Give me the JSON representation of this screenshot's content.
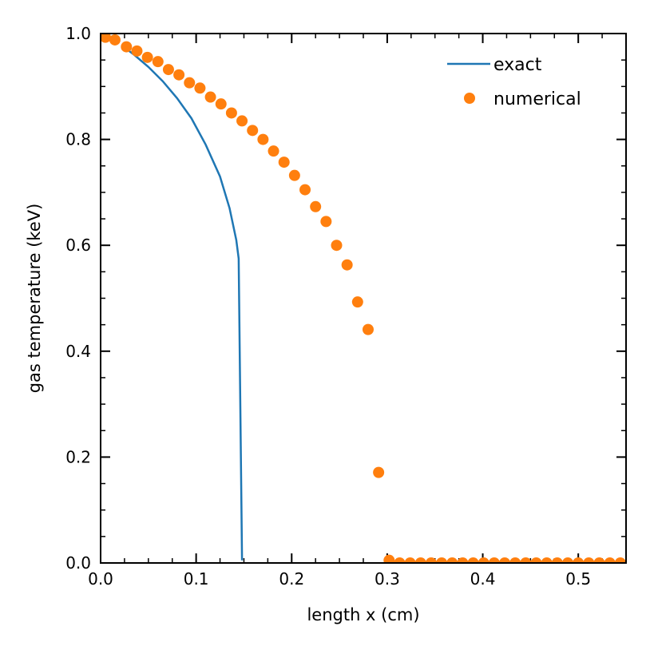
{
  "chart_data": {
    "type": "line",
    "title": "",
    "xlabel": "length x (cm)",
    "ylabel": "gas temperature (keV)",
    "xlim": [
      0.0,
      0.55
    ],
    "ylim": [
      0.0,
      1.0
    ],
    "grid": false,
    "legend_position": "top-right",
    "x_ticks": [
      {
        "value": 0.0,
        "label": "0.0"
      },
      {
        "value": 0.1,
        "label": "0.1"
      },
      {
        "value": 0.2,
        "label": "0.2"
      },
      {
        "value": 0.3,
        "label": "0.3"
      },
      {
        "value": 0.4,
        "label": "0.4"
      },
      {
        "value": 0.5,
        "label": "0.5"
      }
    ],
    "y_ticks": [
      {
        "value": 0.0,
        "label": "0.0"
      },
      {
        "value": 0.2,
        "label": "0.2"
      },
      {
        "value": 0.4,
        "label": "0.4"
      },
      {
        "value": 0.6,
        "label": "0.6"
      },
      {
        "value": 0.8,
        "label": "0.8"
      },
      {
        "value": 1.0,
        "label": "1.0"
      }
    ],
    "x_minor_step": 0.025,
    "y_minor_step": 0.05,
    "series": [
      {
        "name": "exact",
        "kind": "line",
        "color": "#1f77b4",
        "x": [
          0.024,
          0.035,
          0.05,
          0.065,
          0.08,
          0.095,
          0.11,
          0.125,
          0.135,
          0.142,
          0.1445,
          0.148
        ],
        "y": [
          0.975,
          0.96,
          0.937,
          0.91,
          0.878,
          0.84,
          0.79,
          0.73,
          0.67,
          0.61,
          0.575,
          0.005
        ]
      },
      {
        "name": "numerical",
        "kind": "scatter",
        "color": "#ff7f0e",
        "x": [
          0.005,
          0.015,
          0.027,
          0.038,
          0.049,
          0.06,
          0.071,
          0.082,
          0.093,
          0.104,
          0.115,
          0.126,
          0.137,
          0.148,
          0.159,
          0.17,
          0.181,
          0.192,
          0.203,
          0.214,
          0.225,
          0.236,
          0.247,
          0.258,
          0.269,
          0.28,
          0.291,
          0.302,
          0.313,
          0.324,
          0.335,
          0.346,
          0.357,
          0.368,
          0.379,
          0.39,
          0.401,
          0.412,
          0.423,
          0.434,
          0.445,
          0.456,
          0.467,
          0.478,
          0.489,
          0.5,
          0.511,
          0.522,
          0.533,
          0.544
        ],
        "y": [
          0.993,
          0.988,
          0.975,
          0.967,
          0.955,
          0.947,
          0.932,
          0.922,
          0.907,
          0.897,
          0.88,
          0.867,
          0.85,
          0.835,
          0.817,
          0.8,
          0.778,
          0.757,
          0.732,
          0.705,
          0.673,
          0.645,
          0.6,
          0.563,
          0.493,
          0.441,
          0.171,
          0.005,
          0.0,
          0.0,
          0.0,
          0.0,
          0.0,
          0.0,
          0.0,
          0.0,
          0.0,
          0.0,
          0.0,
          0.0,
          0.0,
          0.0,
          0.0,
          0.0,
          0.0,
          0.0,
          0.0,
          0.0,
          0.0,
          0.0
        ]
      }
    ]
  }
}
